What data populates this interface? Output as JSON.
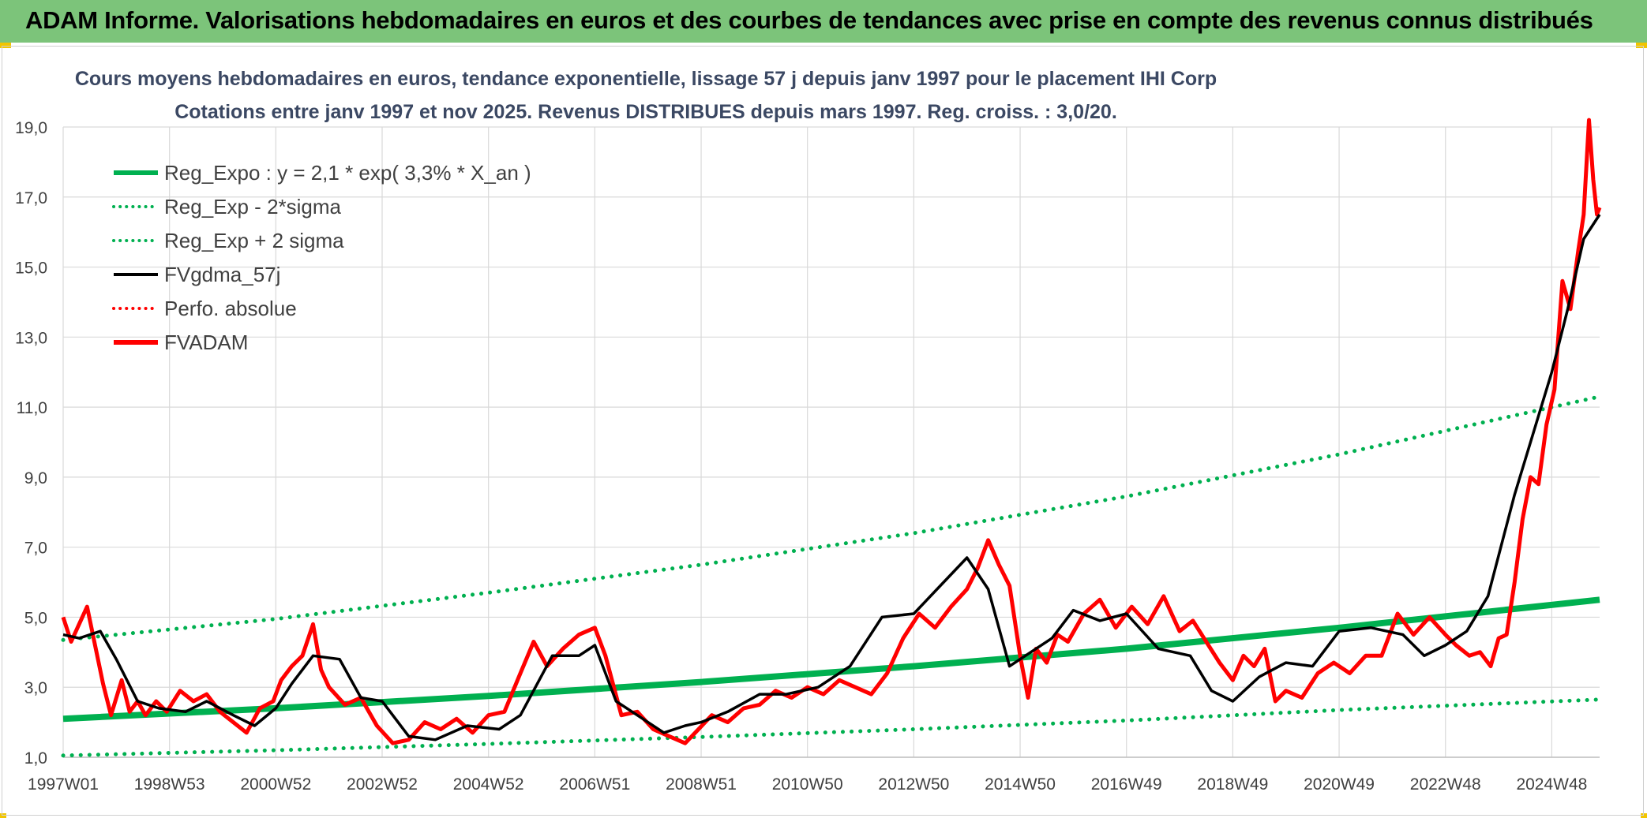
{
  "header": {
    "title": "ADAM Informe. Valorisations hebdomadaires en euros et des courbes de tendances avec prise en compte des revenus connus distribués"
  },
  "colors": {
    "banner": "#7cc47a",
    "accent_corner": "#f2c500",
    "trend_green": "#00b050",
    "smooth_black": "#000000",
    "price_red": "#ff0000",
    "gridline": "#d9d9d9",
    "title_text": "#3b4863"
  },
  "chart_data": {
    "type": "line",
    "title": "Cours moyens hebdomadaires en euros, tendance exponentielle, lissage 57 j depuis janv 1997 pour le placement IHI Corp",
    "subtitle": "Cotations entre janv 1997 et nov 2025. Revenus DISTRIBUES depuis mars 1997. Reg. croiss. : 3,0/20.",
    "xlabel": "",
    "ylabel": "",
    "xlim": [
      1997.0,
      2025.9
    ],
    "ylim": [
      1.0,
      19.0
    ],
    "yticks": [
      "1,0",
      "3,0",
      "5,0",
      "7,0",
      "9,0",
      "11,0",
      "13,0",
      "15,0",
      "17,0",
      "19,0"
    ],
    "ytick_values": [
      1,
      3,
      5,
      7,
      9,
      11,
      13,
      15,
      17,
      19
    ],
    "xticks": [
      "1997W01",
      "1998W53",
      "2000W52",
      "2002W52",
      "2004W52",
      "2006W51",
      "2008W51",
      "2010W50",
      "2012W50",
      "2014W50",
      "2016W49",
      "2018W49",
      "2020W49",
      "2022W48",
      "2024W48"
    ],
    "xtick_values": [
      1997.0,
      1999.0,
      2001.0,
      2003.0,
      2005.0,
      2007.0,
      2009.0,
      2011.0,
      2013.0,
      2015.0,
      2017.0,
      2019.0,
      2021.0,
      2023.0,
      2025.0
    ],
    "grid": true,
    "legend_position": "top-left",
    "series": [
      {
        "name": "Reg_Expo : y = 2,1 * exp( 3,3% *  X_an )",
        "style": "solid-thick",
        "color": "#00b050",
        "x": [
          1997.0,
          2001.0,
          2005.0,
          2009.0,
          2013.0,
          2017.0,
          2021.0,
          2025.9
        ],
        "values": [
          2.1,
          2.4,
          2.75,
          3.15,
          3.6,
          4.1,
          4.7,
          5.5
        ]
      },
      {
        "name": "Reg_Exp - 2*sigma",
        "style": "dotted",
        "color": "#00b050",
        "x": [
          1997.0,
          2001.0,
          2005.0,
          2009.0,
          2013.0,
          2017.0,
          2021.0,
          2025.9
        ],
        "values": [
          1.05,
          1.2,
          1.38,
          1.58,
          1.8,
          2.05,
          2.35,
          2.65
        ]
      },
      {
        "name": "Reg_Exp + 2 sigma",
        "style": "dotted",
        "color": "#00b050",
        "x": [
          1997.0,
          2001.0,
          2005.0,
          2009.0,
          2013.0,
          2017.0,
          2021.0,
          2025.9
        ],
        "values": [
          4.35,
          4.95,
          5.7,
          6.5,
          7.4,
          8.45,
          9.65,
          11.3
        ]
      },
      {
        "name": "FVgdma_57j",
        "style": "solid",
        "color": "#000000",
        "x": [
          1997.0,
          1997.3,
          1997.7,
          1998.0,
          1998.4,
          1998.8,
          1999.3,
          1999.7,
          2000.2,
          2000.6,
          2001.0,
          2001.3,
          2001.7,
          2002.2,
          2002.6,
          2003.0,
          2003.5,
          2004.0,
          2004.6,
          2005.2,
          2005.6,
          2006.2,
          2006.7,
          2007.0,
          2007.4,
          2007.8,
          2008.3,
          2008.7,
          2009.0,
          2009.5,
          2010.1,
          2010.6,
          2011.2,
          2011.8,
          2012.4,
          2013.0,
          2013.5,
          2014.0,
          2014.4,
          2014.8,
          2015.2,
          2015.6,
          2016.0,
          2016.5,
          2017.0,
          2017.6,
          2018.2,
          2018.6,
          2019.0,
          2019.5,
          2020.0,
          2020.5,
          2021.0,
          2021.6,
          2022.2,
          2022.6,
          2023.0,
          2023.4,
          2023.8,
          2024.3,
          2024.6,
          2025.0,
          2025.3,
          2025.6,
          2025.9
        ],
        "values": [
          4.5,
          4.4,
          4.6,
          3.8,
          2.6,
          2.4,
          2.3,
          2.6,
          2.2,
          1.9,
          2.4,
          3.1,
          3.9,
          3.8,
          2.7,
          2.6,
          1.6,
          1.5,
          1.9,
          1.8,
          2.2,
          3.9,
          3.9,
          4.2,
          2.6,
          2.2,
          1.7,
          1.9,
          2.0,
          2.3,
          2.8,
          2.8,
          3.0,
          3.6,
          5.0,
          5.1,
          5.9,
          6.7,
          5.8,
          3.6,
          4.0,
          4.4,
          5.2,
          4.9,
          5.1,
          4.1,
          3.9,
          2.9,
          2.6,
          3.3,
          3.7,
          3.6,
          4.6,
          4.7,
          4.5,
          3.9,
          4.2,
          4.6,
          5.6,
          8.5,
          10.0,
          12.0,
          13.8,
          15.8,
          16.5
        ]
      },
      {
        "name": "Perfo. absolue",
        "style": "dotted",
        "color": "#ff0000",
        "x": [],
        "values": []
      },
      {
        "name": "FVADAM",
        "style": "solid-thick",
        "color": "#ff0000",
        "x": [
          1997.0,
          1997.15,
          1997.3,
          1997.45,
          1997.6,
          1997.75,
          1997.9,
          1998.1,
          1998.25,
          1998.4,
          1998.55,
          1998.75,
          1998.95,
          1999.2,
          1999.45,
          1999.7,
          1999.95,
          2000.2,
          2000.45,
          2000.7,
          2000.95,
          2001.1,
          2001.3,
          2001.5,
          2001.7,
          2001.85,
          2002.0,
          2002.3,
          2002.6,
          2002.9,
          2003.2,
          2003.5,
          2003.8,
          2004.1,
          2004.4,
          2004.7,
          2005.0,
          2005.3,
          2005.6,
          2005.85,
          2006.1,
          2006.4,
          2006.7,
          2007.0,
          2007.2,
          2007.5,
          2007.8,
          2008.1,
          2008.4,
          2008.7,
          2008.95,
          2009.2,
          2009.5,
          2009.8,
          2010.1,
          2010.4,
          2010.7,
          2011.0,
          2011.3,
          2011.6,
          2011.9,
          2012.2,
          2012.5,
          2012.8,
          2013.1,
          2013.4,
          2013.7,
          2014.0,
          2014.2,
          2014.4,
          2014.6,
          2014.8,
          2015.0,
          2015.15,
          2015.3,
          2015.5,
          2015.7,
          2015.9,
          2016.2,
          2016.5,
          2016.8,
          2017.1,
          2017.4,
          2017.7,
          2018.0,
          2018.25,
          2018.5,
          2018.75,
          2019.0,
          2019.2,
          2019.4,
          2019.6,
          2019.8,
          2020.0,
          2020.3,
          2020.6,
          2020.9,
          2021.2,
          2021.5,
          2021.8,
          2022.1,
          2022.4,
          2022.7,
          2023.0,
          2023.2,
          2023.45,
          2023.65,
          2023.85,
          2024.0,
          2024.15,
          2024.3,
          2024.45,
          2024.6,
          2024.75,
          2024.9,
          2025.05,
          2025.2,
          2025.35,
          2025.5,
          2025.6,
          2025.7,
          2025.78,
          2025.85,
          2025.9
        ],
        "values": [
          5.0,
          4.3,
          4.8,
          5.3,
          4.2,
          3.1,
          2.2,
          3.2,
          2.3,
          2.6,
          2.2,
          2.6,
          2.3,
          2.9,
          2.6,
          2.8,
          2.3,
          2.0,
          1.7,
          2.4,
          2.6,
          3.2,
          3.6,
          3.9,
          4.8,
          3.5,
          3.0,
          2.5,
          2.7,
          1.9,
          1.4,
          1.5,
          2.0,
          1.8,
          2.1,
          1.7,
          2.2,
          2.3,
          3.4,
          4.3,
          3.6,
          4.1,
          4.5,
          4.7,
          3.9,
          2.2,
          2.3,
          1.8,
          1.6,
          1.4,
          1.8,
          2.2,
          2.0,
          2.4,
          2.5,
          2.9,
          2.7,
          3.0,
          2.8,
          3.2,
          3.0,
          2.8,
          3.4,
          4.4,
          5.1,
          4.7,
          5.3,
          5.8,
          6.4,
          7.2,
          6.5,
          5.9,
          3.9,
          2.7,
          4.1,
          3.7,
          4.5,
          4.3,
          5.1,
          5.5,
          4.7,
          5.3,
          4.8,
          5.6,
          4.6,
          4.9,
          4.3,
          3.7,
          3.2,
          3.9,
          3.6,
          4.1,
          2.6,
          2.9,
          2.7,
          3.4,
          3.7,
          3.4,
          3.9,
          3.9,
          5.1,
          4.5,
          5.0,
          4.5,
          4.2,
          3.9,
          4.0,
          3.6,
          4.4,
          4.5,
          6.0,
          7.8,
          9.0,
          8.8,
          10.5,
          11.5,
          14.6,
          13.8,
          15.5,
          16.5,
          19.2,
          17.5,
          16.5,
          16.7
        ]
      }
    ]
  }
}
